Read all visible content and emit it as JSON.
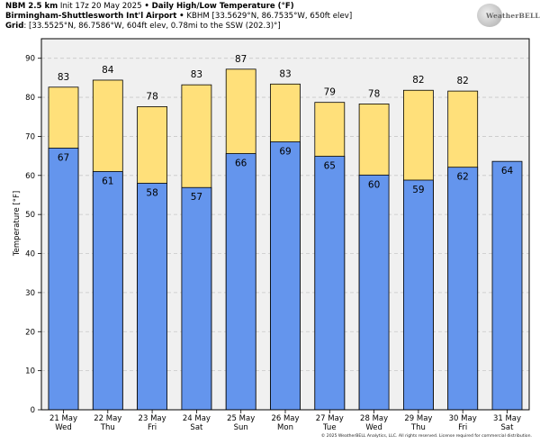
{
  "header": {
    "line1_model": "NBM 2.5 km",
    "line1_init": "Init 17z 20 May 2025",
    "line1_bullet": "•",
    "line1_title": "Daily High/Low Temperature (°F)",
    "line2_station": "Birmingham-Shuttlesworth Int'l Airport",
    "line2_bullet": "•",
    "line2_info": "KBHM [33.5629°N, 86.7535°W, 650ft elev]",
    "line3_label": "Grid",
    "line3_info": ": [33.5525°N, 86.7586°W, 604ft elev, 0.78mi to the SSW (202.3)°]"
  },
  "logo": {
    "text": "WeatherBELL"
  },
  "copyright": "© 2025 WeatherBELL Analytics, LLC. All rights reserved. License required for commercial distribution.",
  "colors": {
    "high": "#ffe07a",
    "low": "#6495ed",
    "plot_bg": "#f0f0f0",
    "grid": "#c8c8c8"
  },
  "chart_data": {
    "type": "bar",
    "ylabel": "Temperature [°F]",
    "ylim": [
      0,
      95
    ],
    "yticks": [
      0,
      10,
      20,
      30,
      40,
      50,
      60,
      70,
      80,
      90
    ],
    "grid": true,
    "categories": [
      {
        "date": "21 May",
        "day": "Wed"
      },
      {
        "date": "22 May",
        "day": "Thu"
      },
      {
        "date": "23 May",
        "day": "Fri"
      },
      {
        "date": "24 May",
        "day": "Sat"
      },
      {
        "date": "25 May",
        "day": "Sun"
      },
      {
        "date": "26 May",
        "day": "Mon"
      },
      {
        "date": "27 May",
        "day": "Tue"
      },
      {
        "date": "28 May",
        "day": "Wed"
      },
      {
        "date": "29 May",
        "day": "Thu"
      },
      {
        "date": "30 May",
        "day": "Fri"
      },
      {
        "date": "31 May",
        "day": "Sat"
      }
    ],
    "series": [
      {
        "key": "high",
        "values": [
          82.6,
          84.4,
          77.6,
          83.2,
          87.2,
          83.4,
          78.7,
          78.3,
          81.8,
          81.6,
          null
        ],
        "labels": [
          "83",
          "84",
          "78",
          "83",
          "87",
          "83",
          "79",
          "78",
          "82",
          "82",
          ""
        ]
      },
      {
        "key": "low",
        "values": [
          67.0,
          61.0,
          58.0,
          56.9,
          65.6,
          68.6,
          64.9,
          60.1,
          58.8,
          62.1,
          63.6
        ],
        "labels": [
          "67",
          "61",
          "58",
          "57",
          "66",
          "69",
          "65",
          "60",
          "59",
          "62",
          "64"
        ]
      }
    ]
  }
}
